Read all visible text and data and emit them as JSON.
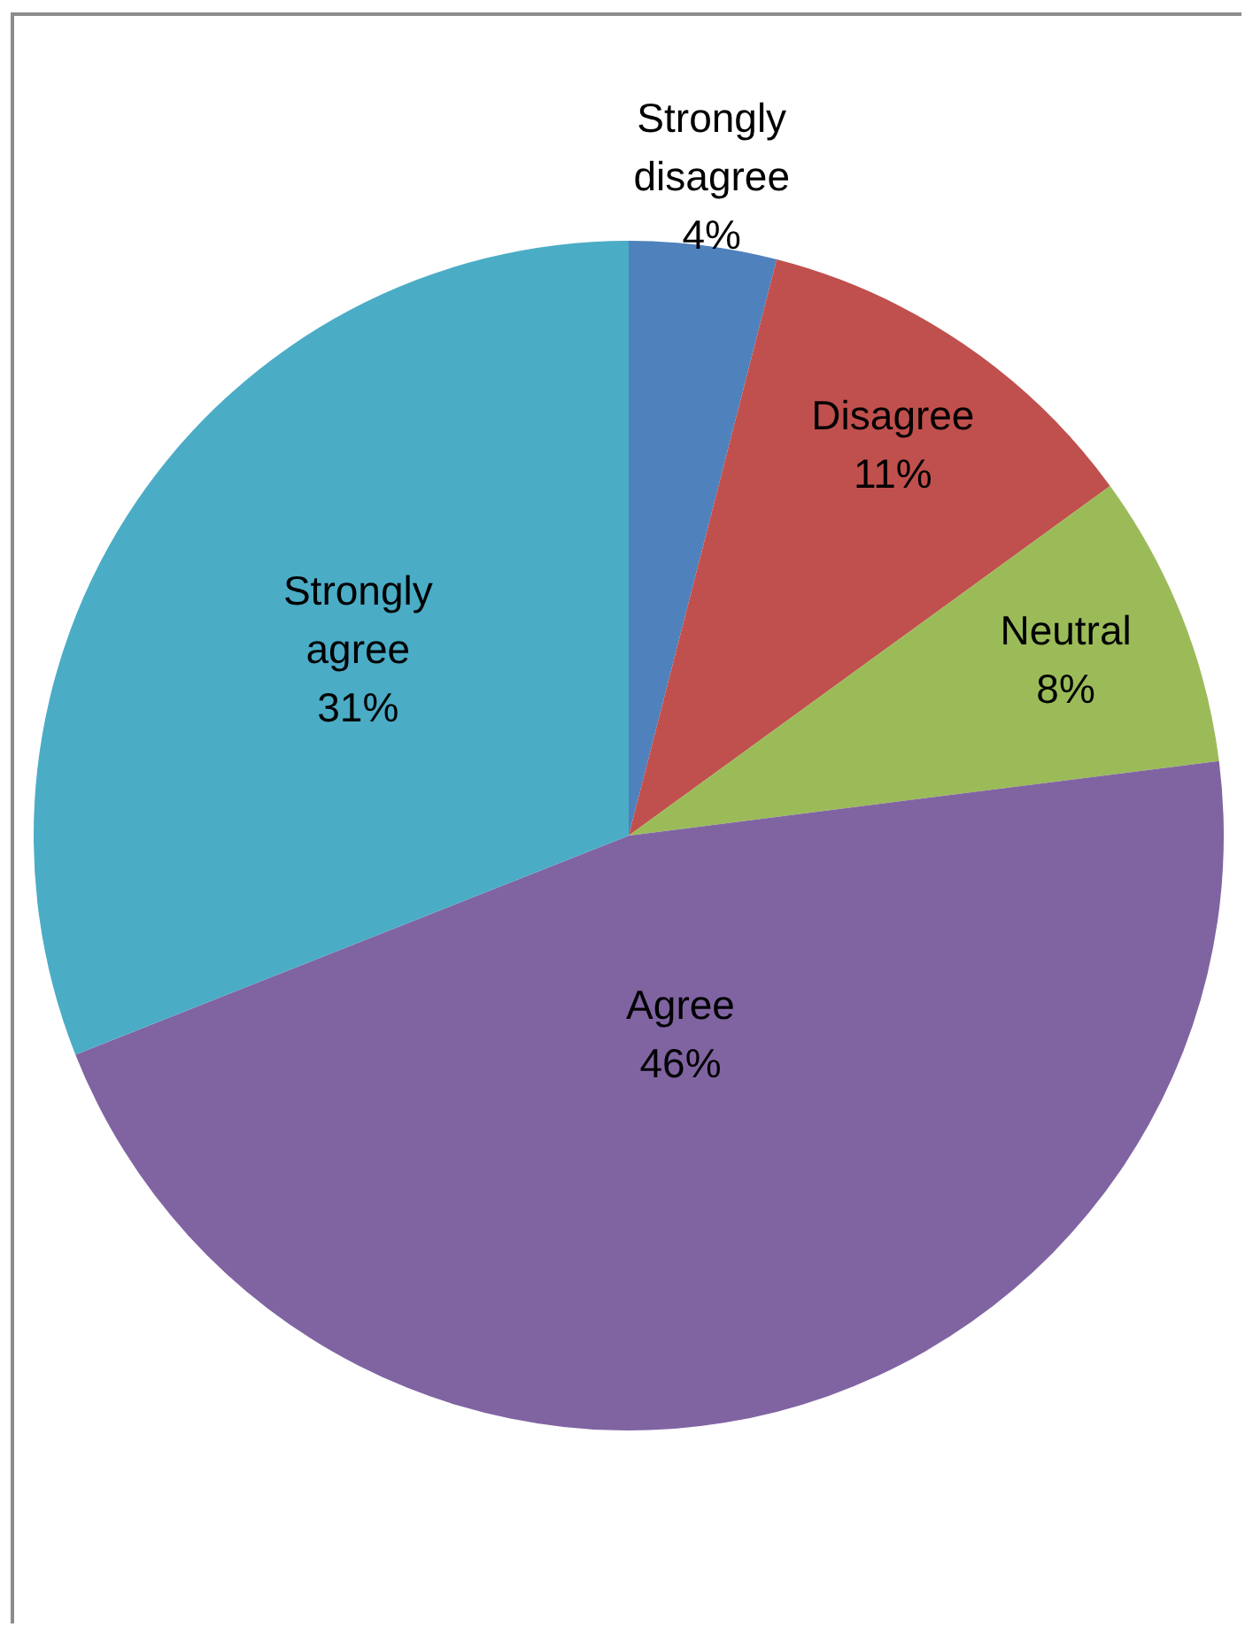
{
  "chart_data": {
    "type": "pie",
    "categories": [
      "Strongly disagree",
      "Disagree",
      "Neutral",
      "Agree",
      "Strongly agree"
    ],
    "values": [
      4,
      11,
      8,
      46,
      31
    ],
    "colors": [
      "#4f81bd",
      "#c0504d",
      "#9bbb59",
      "#8064a2",
      "#4bacc6"
    ],
    "value_labels": [
      "4%",
      "11%",
      "8%",
      "46%",
      "31%"
    ],
    "legend": false
  }
}
